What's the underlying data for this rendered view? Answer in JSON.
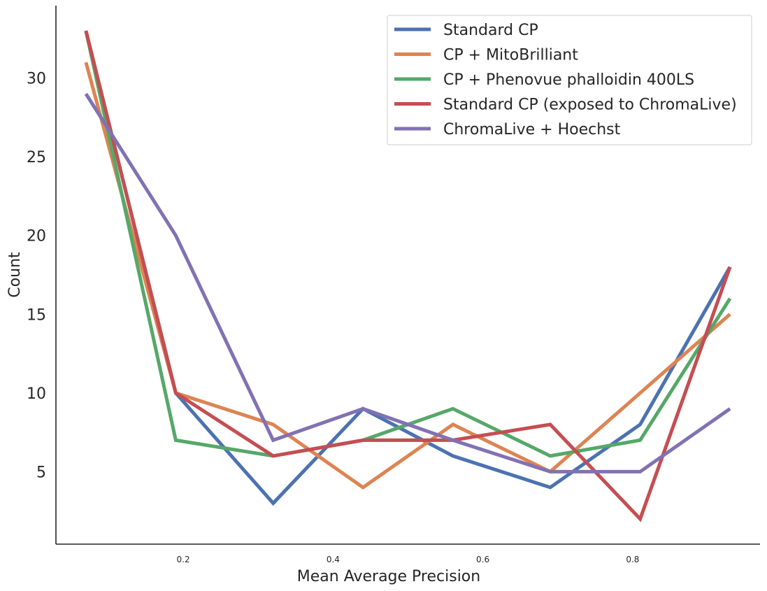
{
  "chart_data": {
    "type": "line",
    "xlabel": "Mean Average Precision",
    "ylabel": "Count",
    "x": [
      0.07,
      0.19,
      0.32,
      0.44,
      0.56,
      0.69,
      0.81,
      0.93
    ],
    "xticks": [
      0.2,
      0.4,
      0.6,
      0.8
    ],
    "xtick_labels": [
      "0.2",
      "0.4",
      "0.6",
      "0.8"
    ],
    "yticks": [
      5,
      10,
      15,
      20,
      25,
      30
    ],
    "ytick_labels": [
      "5",
      "10",
      "15",
      "20",
      "25",
      "30"
    ],
    "xlim": [
      0.03,
      0.97
    ],
    "ylim": [
      0.4,
      34.6
    ],
    "grid": false,
    "legend_position": "top-right",
    "series": [
      {
        "name": "Standard CP",
        "color": "#4c72b0",
        "values": [
          33,
          10,
          3,
          9,
          6,
          4,
          8,
          18
        ]
      },
      {
        "name": "CP + MitoBrilliant",
        "color": "#dd8452",
        "values": [
          31,
          10,
          8,
          4,
          8,
          5,
          10,
          15
        ]
      },
      {
        "name": "CP + Phenovue phalloidin 400LS",
        "color": "#55a868",
        "values": [
          33,
          7,
          6,
          7,
          9,
          6,
          7,
          16
        ]
      },
      {
        "name": "Standard CP (exposed to ChromaLive)",
        "color": "#c44e52",
        "values": [
          33,
          10,
          6,
          7,
          7,
          8,
          2,
          18
        ]
      },
      {
        "name": "ChromaLive + Hoechst",
        "color": "#8172b3",
        "values": [
          29,
          20,
          7,
          9,
          7,
          5,
          5,
          9
        ]
      }
    ]
  }
}
